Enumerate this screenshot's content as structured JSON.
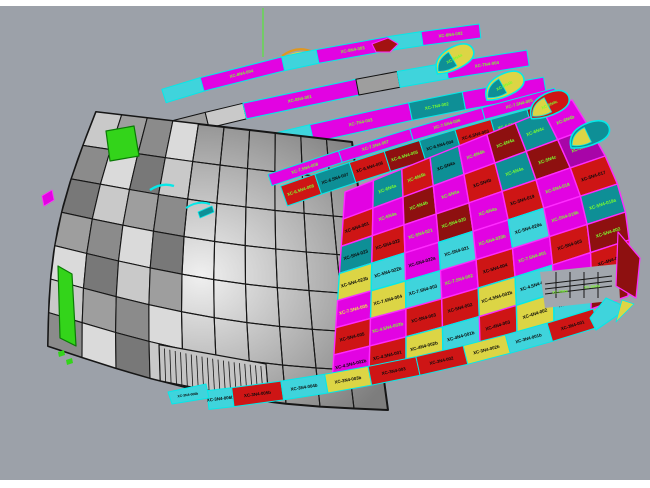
{
  "colors": {
    "page_margin": "#FFFFFF",
    "viewport_bg": "#9CA1A9",
    "wireframe": "#161616",
    "hull_light": "#F0F0F0",
    "hull_mid": "#ACACAC",
    "hull_dark": "#7D7D7D",
    "magenta": "#E203E2",
    "magenta_stroke": "#FF2BFF",
    "red": "#CE1515",
    "darkred": "#8E1010",
    "crimson": "#A31212",
    "teal": "#0E8F96",
    "cyan": "#3FD4DC",
    "cyan_stroke": "#06E8E8",
    "yellow": "#DCD545",
    "purple": "#A805A8",
    "gray1": "#C9C9C9",
    "gray2": "#9E9E9E",
    "gray3": "#787878",
    "green_accent": "#33D41A",
    "construction_line": "#57E83A",
    "orange": "#E2971D",
    "label_g": "#7CFE2E",
    "label_k": "#0B0B0B",
    "label_y": "#E6F23F",
    "label_w": "#F0F0F0"
  },
  "checker": {
    "rows": [
      [
        {
          "c": "magenta"
        },
        {
          "c": "teal",
          "t": "XC-6N4a",
          "tc": "g"
        },
        {
          "c": "red",
          "t": "XC-6N4b",
          "tc": "g"
        },
        {
          "c": "teal",
          "t": "XC-6N4a",
          "tc": "k"
        },
        {
          "c": "magenta",
          "t": "XC-6N4b",
          "tc": "g"
        },
        {
          "c": "darkred",
          "t": "XC-6N4a",
          "tc": "g"
        },
        {
          "c": "teal",
          "t": "XC-6N4c",
          "tc": "g"
        },
        {
          "c": "magenta",
          "t": "XC-6N4b",
          "tc": "g"
        }
      ],
      [
        {
          "c": "red",
          "t": "XC-6N4-001",
          "tc": "k"
        },
        {
          "c": "magenta",
          "t": "XC-5N4a",
          "tc": "g"
        },
        {
          "c": "darkred",
          "t": "XC-5N4b",
          "tc": "g"
        },
        {
          "c": "magenta",
          "t": "XC-5N4a",
          "tc": "g"
        },
        {
          "c": "red",
          "t": "XC-5N4b",
          "tc": "k"
        },
        {
          "c": "teal",
          "t": "XC-5N4a",
          "tc": "g"
        },
        {
          "c": "darkred",
          "t": "XC-5N4c",
          "tc": "g"
        },
        {
          "c": "purple",
          "t": "XC-5N4b",
          "tc": "g"
        }
      ],
      [
        {
          "c": "teal",
          "t": "XC-5N4-023",
          "tc": "k"
        },
        {
          "c": "red",
          "t": "XC-5N4-022",
          "tc": "k"
        },
        {
          "c": "magenta",
          "t": "XC-5N4-021",
          "tc": "g"
        },
        {
          "c": "darkred",
          "t": "XC-5N4-020",
          "tc": "g"
        },
        {
          "c": "magenta",
          "t": "XC-6N4a",
          "tc": "g"
        },
        {
          "c": "red",
          "t": "XC-5N4-019",
          "tc": "k"
        },
        {
          "c": "magenta",
          "t": "XC-5N4-018",
          "tc": "g"
        },
        {
          "c": "red",
          "t": "XC-5N4-017",
          "tc": "k"
        }
      ],
      [
        {
          "c": "yellow",
          "t": "XC-5N4-023b",
          "tc": "k"
        },
        {
          "c": "cyan",
          "t": "XC-5N4-022b",
          "tc": "k"
        },
        {
          "c": "magenta",
          "t": "XC-5N4-022a",
          "tc": "k"
        },
        {
          "c": "cyan",
          "t": "XC-5N4-021",
          "tc": "k"
        },
        {
          "c": "magenta",
          "t": "XC-5N4-020b",
          "tc": "g"
        },
        {
          "c": "cyan",
          "t": "XC-5N4-020a",
          "tc": "k"
        },
        {
          "c": "magenta",
          "t": "XC-5N4-019b",
          "tc": "g"
        },
        {
          "c": "teal",
          "t": "XC-5N4-019a",
          "tc": "g"
        }
      ],
      [
        {
          "c": "magenta",
          "t": "XC-7.5N4-005",
          "tc": "y"
        },
        {
          "c": "yellow",
          "t": "XC-7.5N4-004",
          "tc": "k"
        },
        {
          "c": "cyan",
          "t": "XC-7.5N4-003",
          "tc": "k"
        },
        {
          "c": "magenta",
          "t": "XC-7.5N4-002",
          "tc": "g"
        },
        {
          "c": "red",
          "t": "XC-5N4-004",
          "tc": "k"
        },
        {
          "c": "magenta",
          "t": "XC-7.5N4-001",
          "tc": "g"
        },
        {
          "c": "red",
          "t": "XC-5N4-003",
          "tc": "k"
        },
        {
          "c": "darkred",
          "t": "XC-5N4-002",
          "tc": "g"
        }
      ],
      [
        {
          "c": "red",
          "t": "XC-5N4-005",
          "tc": "k"
        },
        {
          "c": "magenta",
          "t": "XC-4.5N4-003b",
          "tc": "g"
        },
        {
          "c": "red",
          "t": "XC-5N4-003",
          "tc": "k"
        },
        {
          "c": "red",
          "t": "XC-5N4-002",
          "tc": "k"
        },
        {
          "c": "yellow",
          "t": "XC-4.5N4-002b",
          "tc": "k"
        },
        {
          "c": "cyan",
          "t": "XC-4.5N4-001",
          "tc": "k"
        },
        {
          "c": "magenta",
          "t": "XC-4N4-002",
          "tc": "g"
        },
        {
          "c": "red",
          "t": "XC-4N4-001",
          "tc": "k"
        }
      ],
      [
        {
          "c": "magenta",
          "t": "XC-4.5N4-002b",
          "tc": "k"
        },
        {
          "c": "red",
          "t": "XC-4.5N4-001",
          "tc": "k"
        },
        {
          "c": "yellow",
          "t": "XC-4N4-002b",
          "tc": "k"
        },
        {
          "c": "cyan",
          "t": "XC-4N4-001b",
          "tc": "k"
        },
        {
          "c": "red",
          "t": "XC-4N4-003",
          "tc": "k"
        },
        {
          "c": "yellow",
          "t": "XC-4N4-002",
          "tc": "k"
        },
        {
          "c": "cyan",
          "t": "XC-3N4-001b",
          "tc": "k"
        },
        {
          "c": "darkred",
          "t": "XC-3N4-001",
          "tc": "g"
        }
      ]
    ]
  },
  "ribbons": [
    {
      "name": "top-strip-1",
      "segments": [
        {
          "c": "cyan",
          "w": 1
        },
        {
          "c": "magenta",
          "w": 2,
          "t": "XC-8N4-004",
          "tc": "g"
        },
        {
          "c": "cyan",
          "w": 0.8
        },
        {
          "c": "magenta",
          "w": 1.6,
          "t": "XC-8N4-003",
          "tc": "g"
        },
        {
          "c": "cyan",
          "w": 0.7
        },
        {
          "c": "magenta",
          "w": 1.2,
          "t": "XC-8N4-002",
          "tc": "g"
        }
      ]
    },
    {
      "name": "top-strip-2",
      "segments": [
        {
          "c": "gray1",
          "w": 0.9
        },
        {
          "c": "magenta",
          "w": 0.8
        },
        {
          "c": "gray2",
          "w": 0.6
        },
        {
          "c": "gray1",
          "w": 0.7
        },
        {
          "c": "magenta",
          "w": 2.0,
          "t": "XC-8N4-001",
          "tc": "g"
        },
        {
          "c": "gray2",
          "w": 0.7
        },
        {
          "c": "cyan",
          "w": 0.8
        },
        {
          "c": "magenta",
          "w": 1.3,
          "t": "XC-7N4-004",
          "tc": "g"
        }
      ]
    },
    {
      "name": "sheer-strip",
      "segments": [
        {
          "c": "gray3",
          "w": 1.2
        },
        {
          "c": "gray1",
          "w": 1.0
        },
        {
          "c": "gray2",
          "w": 0.8
        },
        {
          "c": "cyan",
          "w": 0.7
        },
        {
          "c": "magenta",
          "w": 1.5,
          "t": "XC-7N4-003",
          "tc": "g"
        },
        {
          "c": "teal",
          "w": 0.8,
          "t": "XC-7N4-002",
          "tc": "g"
        },
        {
          "c": "magenta",
          "w": 1.2,
          "t": "XC-7N4-001",
          "tc": "g"
        }
      ]
    },
    {
      "name": "deck-band",
      "segments": [
        {
          "c": "magenta",
          "w": 1,
          "t": "XC-7.5N4-008",
          "tc": "g"
        },
        {
          "c": "magenta",
          "w": 1,
          "t": "XC-7.5N4-007",
          "tc": "g"
        },
        {
          "c": "magenta",
          "w": 1,
          "t": "XC-7.5N4-006",
          "tc": "g"
        },
        {
          "c": "magenta",
          "w": 1,
          "t": "XC-7.5N4-005",
          "tc": "g"
        }
      ]
    },
    {
      "name": "deck-checker-row",
      "segments": [
        {
          "c": "red",
          "w": 1,
          "t": "XC-6.5N4-008",
          "tc": "g"
        },
        {
          "c": "teal",
          "w": 1,
          "t": "XC-6.5N4-007",
          "tc": "k"
        },
        {
          "c": "red",
          "w": 1,
          "t": "XC-6.5N4-006",
          "tc": "k"
        },
        {
          "c": "darkred",
          "w": 1,
          "t": "XC-6.5N4-005",
          "tc": "g"
        },
        {
          "c": "teal",
          "w": 1,
          "t": "XC-6.5N4-004",
          "tc": "k"
        },
        {
          "c": "red",
          "w": 1,
          "t": "XC-6.5N4-003",
          "tc": "k"
        },
        {
          "c": "teal",
          "w": 1,
          "t": "XC-6.5N4-002",
          "tc": "g"
        },
        {
          "c": "darkred",
          "w": 1,
          "t": "XC-6.5N4-001",
          "tc": "g"
        }
      ]
    }
  ],
  "bottom_strip": {
    "segments": [
      {
        "c": "cyan",
        "w": 0.5,
        "t": "XC-3N4-006b",
        "tc": "k"
      },
      {
        "c": "red",
        "w": 1.0,
        "t": "XC-3N4-005b",
        "tc": "k"
      },
      {
        "c": "cyan",
        "w": 0.9,
        "t": "XC-3N4-004b",
        "tc": "k"
      },
      {
        "c": "yellow",
        "w": 0.9,
        "t": "XC-3N4-003b",
        "tc": "k"
      },
      {
        "c": "red",
        "w": 1.0,
        "t": "XC-3N4-003",
        "tc": "k"
      },
      {
        "c": "red",
        "w": 1.0,
        "t": "XC-3N4-002",
        "tc": "k"
      },
      {
        "c": "yellow",
        "w": 0.9,
        "t": "XC-3N4-002b",
        "tc": "k"
      },
      {
        "c": "cyan",
        "w": 0.9,
        "t": "XC-3N4-001b",
        "tc": "k"
      },
      {
        "c": "red",
        "w": 1.0,
        "t": "XC-3N4-001",
        "tc": "k"
      }
    ]
  },
  "hooks": [
    {
      "body": "yellow",
      "inner": "teal",
      "t": "XC-9N4a",
      "tc": "g"
    },
    {
      "body": "yellow",
      "inner": "teal",
      "t": "XC-9N4b",
      "tc": "g"
    },
    {
      "body": "red",
      "inner": "yellow",
      "t": "XC-9N4c",
      "tc": "g"
    },
    {
      "body": "teal",
      "inner": "yellow",
      "t": "",
      "tc": "g"
    }
  ],
  "stern_labels": [
    {
      "t": "XC-3N4a",
      "tc": "g"
    },
    {
      "t": "XC-3N4b",
      "tc": "g"
    }
  ],
  "keel_label": {
    "t": "XC-3N4-006b",
    "tc": "k"
  }
}
